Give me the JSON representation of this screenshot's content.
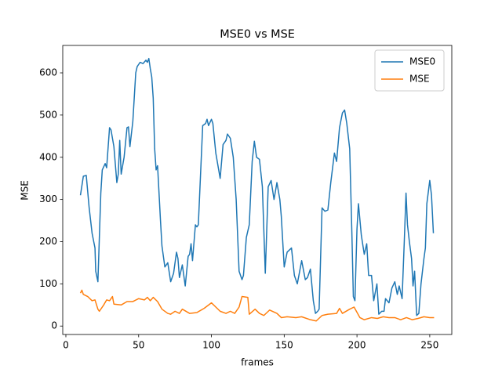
{
  "chart_data": {
    "type": "line",
    "title": "MSE0 vs MSE",
    "xlabel": "frames",
    "ylabel": "MSE",
    "xlim": [
      -2.15,
      265.15
    ],
    "ylim": [
      -20,
      665
    ],
    "xticks": [
      0,
      50,
      100,
      150,
      200,
      250
    ],
    "yticks": [
      0,
      100,
      200,
      300,
      400,
      500,
      600
    ],
    "legend": "upper right",
    "series": [
      {
        "name": "MSE0",
        "color": "#1f77b4",
        "x": [
          10,
          12,
          14,
          16,
          18,
          20,
          20.5,
          22,
          23,
          24,
          25,
          27,
          28,
          30,
          31,
          33,
          35,
          36,
          37,
          38,
          40,
          42,
          43,
          44,
          46,
          48,
          49,
          50,
          51,
          53,
          55,
          56,
          57,
          58,
          59,
          60,
          61,
          62,
          63,
          65,
          66,
          68,
          70,
          72,
          74,
          76,
          77,
          78,
          80,
          82,
          84,
          85,
          86,
          87,
          89,
          90,
          91,
          94,
          96,
          97,
          98,
          100,
          101,
          103,
          106,
          108,
          110,
          111,
          113,
          115,
          117,
          119,
          121,
          122,
          124,
          126,
          128,
          129.5,
          131,
          133,
          135,
          137,
          139,
          141,
          143,
          145,
          147,
          148,
          150,
          152,
          155,
          157,
          159,
          162,
          164.5,
          166,
          168,
          170,
          171.5,
          173,
          174,
          176,
          178,
          180,
          182,
          184.5,
          186,
          188,
          190,
          191.5,
          193,
          195,
          196.5,
          197.5,
          198.6,
          200,
          201,
          203,
          205,
          206.7,
          208,
          210,
          211.5,
          213.7,
          215,
          217,
          218.6,
          219.6,
          222,
          224,
          226,
          227.7,
          229,
          231,
          232.5,
          233.7,
          234.7,
          236,
          237.5,
          238.5,
          239.6,
          241,
          242.5,
          244,
          246,
          247,
          248,
          250,
          251.2,
          252.5
        ],
        "values": [
          310,
          355,
          357,
          280,
          220,
          185,
          130,
          105,
          210,
          315,
          370,
          385,
          375,
          470,
          465,
          425,
          340,
          360,
          440,
          360,
          400,
          470,
          472,
          425,
          485,
          600,
          615,
          620,
          625,
          622,
          630,
          625,
          634,
          610,
          590,
          540,
          420,
          370,
          380,
          250,
          190,
          140,
          150,
          105,
          125,
          175,
          160,
          115,
          145,
          95,
          165,
          170,
          195,
          155,
          240,
          235,
          240,
          475,
          480,
          490,
          475,
          490,
          480,
          410,
          350,
          430,
          440,
          455,
          445,
          400,
          300,
          130,
          110,
          120,
          210,
          240,
          390,
          438,
          400,
          395,
          330,
          125,
          330,
          345,
          300,
          340,
          300,
          260,
          140,
          175,
          185,
          120,
          100,
          155,
          110,
          115,
          135,
          60,
          30,
          35,
          40,
          280,
          272,
          275,
          340,
          410,
          390,
          470,
          505,
          512,
          480,
          420,
          220,
          70,
          60,
          230,
          290,
          215,
          170,
          195,
          120,
          120,
          60,
          100,
          28,
          35,
          35,
          65,
          55,
          90,
          105,
          75,
          95,
          65,
          200,
          315,
          240,
          200,
          160,
          95,
          130,
          25,
          30,
          100,
          160,
          185,
          290,
          345,
          310,
          220
        ]
      },
      {
        "name": "MSE",
        "color": "#ff7f0e",
        "x": [
          10,
          11,
          12,
          15,
          18,
          20,
          22,
          23,
          26,
          28,
          30,
          32,
          33,
          38,
          42,
          46,
          50,
          54,
          56,
          58,
          60,
          63,
          66,
          70,
          72,
          75,
          78,
          80,
          85,
          90,
          95,
          100,
          103,
          106,
          110,
          113,
          116,
          119,
          121,
          125,
          126,
          130,
          133,
          136,
          140,
          145,
          148,
          152,
          158,
          162,
          168,
          172,
          176,
          180,
          186,
          188,
          190,
          195,
          198,
          202,
          205,
          210,
          214,
          218,
          222,
          226,
          230,
          234,
          238,
          242,
          246,
          250,
          253
        ],
        "values": [
          78,
          85,
          75,
          70,
          60,
          62,
          40,
          35,
          50,
          62,
          60,
          70,
          52,
          50,
          58,
          58,
          65,
          62,
          68,
          60,
          68,
          58,
          40,
          30,
          28,
          35,
          30,
          40,
          30,
          32,
          42,
          55,
          45,
          35,
          30,
          35,
          30,
          45,
          70,
          68,
          28,
          40,
          30,
          25,
          38,
          30,
          20,
          22,
          20,
          22,
          15,
          12,
          25,
          28,
          30,
          42,
          30,
          40,
          45,
          20,
          15,
          20,
          18,
          22,
          20,
          20,
          15,
          20,
          15,
          18,
          22,
          20,
          20
        ]
      }
    ]
  }
}
